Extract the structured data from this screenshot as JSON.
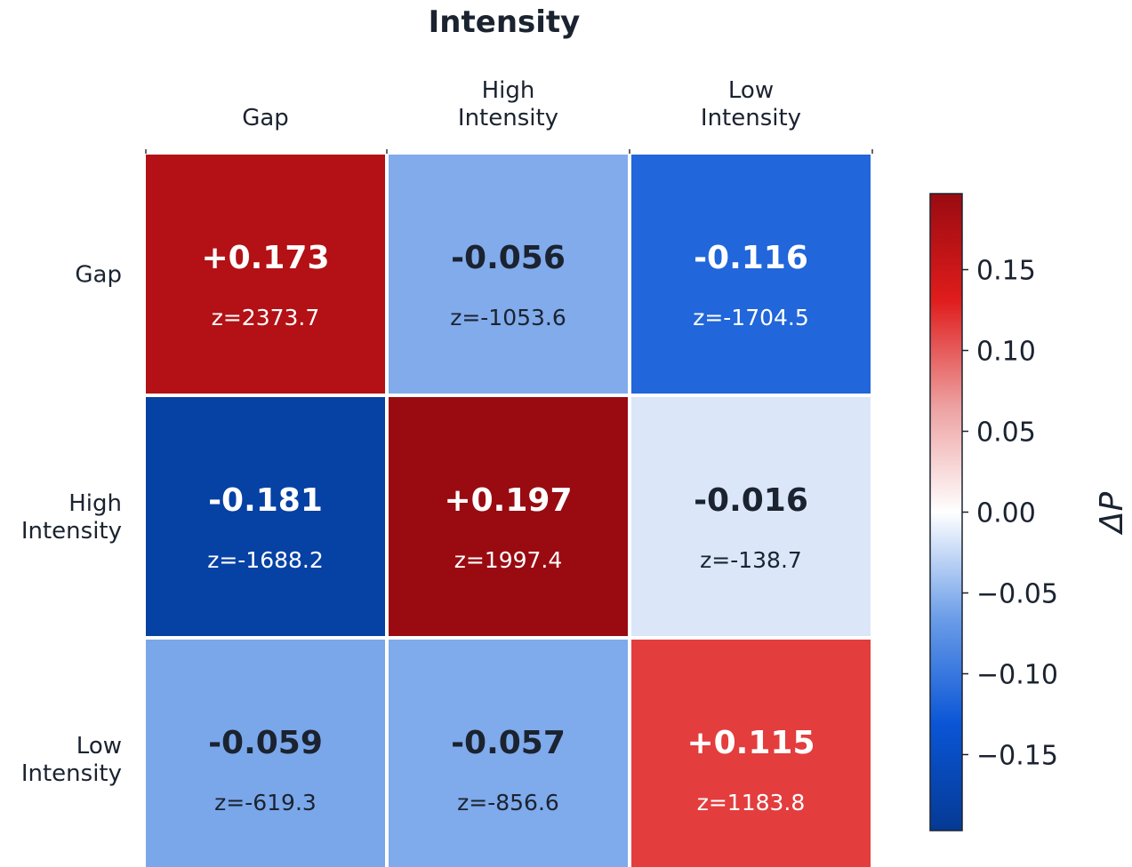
{
  "chart_data": {
    "type": "heatmap",
    "title": "Intensity",
    "columns": [
      "Gap",
      "High Intensity",
      "Low Intensity"
    ],
    "rows": [
      "Gap",
      "High Intensity",
      "Low Intensity"
    ],
    "col_label_lines": [
      [
        "Gap"
      ],
      [
        "High",
        "Intensity"
      ],
      [
        "Low",
        "Intensity"
      ]
    ],
    "row_label_lines": [
      [
        "Gap"
      ],
      [
        "High",
        "Intensity"
      ],
      [
        "Low",
        "Intensity"
      ]
    ],
    "values": [
      [
        0.173,
        -0.056,
        -0.116
      ],
      [
        -0.181,
        0.197,
        -0.016
      ],
      [
        -0.059,
        -0.057,
        0.115
      ]
    ],
    "value_labels": [
      [
        "+0.173",
        "-0.056",
        "-0.116"
      ],
      [
        "-0.181",
        "+0.197",
        "-0.016"
      ],
      [
        "-0.059",
        "-0.057",
        "+0.115"
      ]
    ],
    "z_labels": [
      [
        "z=2373.7",
        "z=-1053.6",
        "z=-1704.5"
      ],
      [
        "z=-1688.2",
        "z=1997.4",
        "z=-138.7"
      ],
      [
        "z=-619.3",
        "z=-856.6",
        "z=1183.8"
      ]
    ],
    "colorbar": {
      "label": "ΔP",
      "vmin": -0.197,
      "vmax": 0.197,
      "ticks": [
        0.15,
        0.1,
        0.05,
        0.0,
        -0.05,
        -0.1,
        -0.15
      ],
      "tick_labels": [
        "0.15",
        "0.10",
        "0.05",
        "0.00",
        "−0.05",
        "−0.10",
        "−0.15"
      ],
      "colormap": "blue-white-red",
      "colors": [
        "#053a94",
        "#0a55d6",
        "#6b9de8",
        "#ffffff",
        "#eda0a0",
        "#e01c1c",
        "#990b11"
      ]
    },
    "grid": true
  }
}
